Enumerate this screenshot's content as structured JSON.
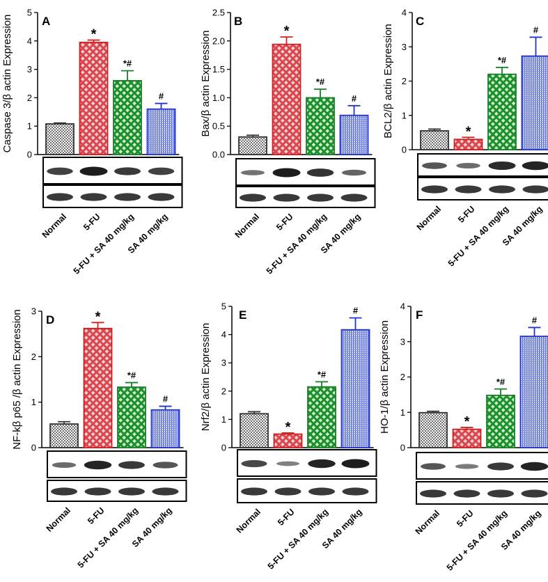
{
  "colors": {
    "normal": "#6f6f6f",
    "fu": "#d8464e",
    "fusa": "#1a8f2a",
    "sa": "#4a5fd6",
    "error_normal": "#333333",
    "error_fu": "#d02020",
    "error_fusa": "#1a7f2a",
    "error_sa": "#2233cc"
  },
  "chart_data": [
    {
      "type": "bar",
      "panel": "A",
      "ylabel": "Caspase 3/β actin Expression",
      "ylim": [
        0,
        5
      ],
      "ytick_labels": [
        "0",
        "1",
        "2",
        "3",
        "4",
        "5"
      ],
      "ytick_values": [
        0,
        1,
        2,
        3,
        4,
        5
      ],
      "categories": [
        "Normal",
        "5-FU",
        "5-FU + SA 40 mg/kg",
        "SA 40 mg/kg"
      ],
      "values": [
        1.08,
        3.95,
        2.6,
        1.6
      ],
      "errors": [
        0.03,
        0.08,
        0.35,
        0.2
      ],
      "annotations": [
        "",
        "*",
        "*#",
        "#"
      ],
      "blot_bands": [
        [
          0.75,
          1.0,
          0.8,
          0.75
        ],
        [
          0.8,
          0.8,
          0.8,
          0.8
        ]
      ]
    },
    {
      "type": "bar",
      "panel": "B",
      "ylabel": "Bax/β actin Expression",
      "ylim": [
        0,
        2.5
      ],
      "ytick_labels": [
        "0.0",
        "0.5",
        "1.0",
        "1.5",
        "2.0",
        "2.5"
      ],
      "ytick_values": [
        0,
        0.5,
        1.0,
        1.5,
        2.0,
        2.5
      ],
      "categories": [
        "Normal",
        "5-FU",
        "5-FU + SA 40 mg/kg",
        "SA 40 mg/kg"
      ],
      "values": [
        0.31,
        1.94,
        1.0,
        0.69
      ],
      "errors": [
        0.03,
        0.13,
        0.15,
        0.17
      ],
      "annotations": [
        "",
        "*",
        "*#",
        "#"
      ],
      "blot_bands": [
        [
          0.4,
          1.0,
          0.85,
          0.5
        ],
        [
          0.8,
          0.8,
          0.8,
          0.8
        ]
      ]
    },
    {
      "type": "bar",
      "panel": "C",
      "ylabel": "BCL2/β actin Expression",
      "ylim": [
        0,
        4
      ],
      "ytick_labels": [
        "0",
        "1",
        "2",
        "3",
        "4"
      ],
      "ytick_values": [
        0,
        1,
        2,
        3,
        4
      ],
      "categories": [
        "Normal",
        "5-FU",
        "5-FU + SA 40 mg/kg",
        "SA 40 mg/kg"
      ],
      "values": [
        0.55,
        0.3,
        2.2,
        2.73
      ],
      "errors": [
        0.05,
        0.06,
        0.2,
        0.55
      ],
      "annotations": [
        "",
        "*",
        "*#",
        "#"
      ],
      "blot_bands": [
        [
          0.6,
          0.45,
          0.9,
          0.95
        ],
        [
          0.8,
          0.8,
          0.8,
          0.8
        ]
      ]
    },
    {
      "type": "bar",
      "panel": "D",
      "ylabel": "NF-kβ p65 /β actin Expression",
      "ylim": [
        0,
        3
      ],
      "ytick_labels": [
        "0",
        "1",
        "2",
        "3"
      ],
      "ytick_values": [
        0,
        1,
        2,
        3
      ],
      "categories": [
        "Normal",
        "5-FU",
        "5-FU + SA 40 mg/kg",
        "SA 40 mg/kg"
      ],
      "values": [
        0.52,
        2.62,
        1.33,
        0.83
      ],
      "errors": [
        0.05,
        0.13,
        0.1,
        0.08
      ],
      "annotations": [
        "",
        "*",
        "*#",
        "#"
      ],
      "blot_bands": [
        [
          0.45,
          0.95,
          0.8,
          0.6
        ],
        [
          0.8,
          0.8,
          0.8,
          0.8
        ]
      ]
    },
    {
      "type": "bar",
      "panel": "E",
      "ylabel": "Nrf2/β actin Expression",
      "ylim": [
        0,
        5
      ],
      "ytick_labels": [
        "0",
        "1",
        "2",
        "3",
        "4",
        "5"
      ],
      "ytick_values": [
        0,
        1,
        2,
        3,
        4,
        5
      ],
      "categories": [
        "Normal",
        "5-FU",
        "5-FU + SA 40 mg/kg",
        "SA 40 mg/kg"
      ],
      "values": [
        1.2,
        0.48,
        2.15,
        4.17
      ],
      "errors": [
        0.07,
        0.04,
        0.18,
        0.42
      ],
      "annotations": [
        "",
        "*",
        "*#",
        "#"
      ],
      "blot_bands": [
        [
          0.7,
          0.3,
          0.95,
          1.0
        ],
        [
          0.8,
          0.8,
          0.8,
          0.8
        ]
      ]
    },
    {
      "type": "bar",
      "panel": "F",
      "ylabel": "HO-1/β actin Expression",
      "ylim": [
        0,
        4
      ],
      "ytick_labels": [
        "0",
        "1",
        "2",
        "3",
        "4"
      ],
      "ytick_values": [
        0,
        1,
        2,
        3,
        4
      ],
      "categories": [
        "Normal",
        "5-FU",
        "5-FU + SA 40 mg/kg",
        "SA 40 mg/kg"
      ],
      "values": [
        0.99,
        0.52,
        1.48,
        3.15
      ],
      "errors": [
        0.04,
        0.05,
        0.18,
        0.25
      ],
      "annotations": [
        "",
        "*",
        "*#",
        "#"
      ],
      "blot_bands": [
        [
          0.6,
          0.35,
          0.8,
          0.95
        ],
        [
          0.8,
          0.8,
          0.8,
          0.8
        ]
      ]
    }
  ]
}
